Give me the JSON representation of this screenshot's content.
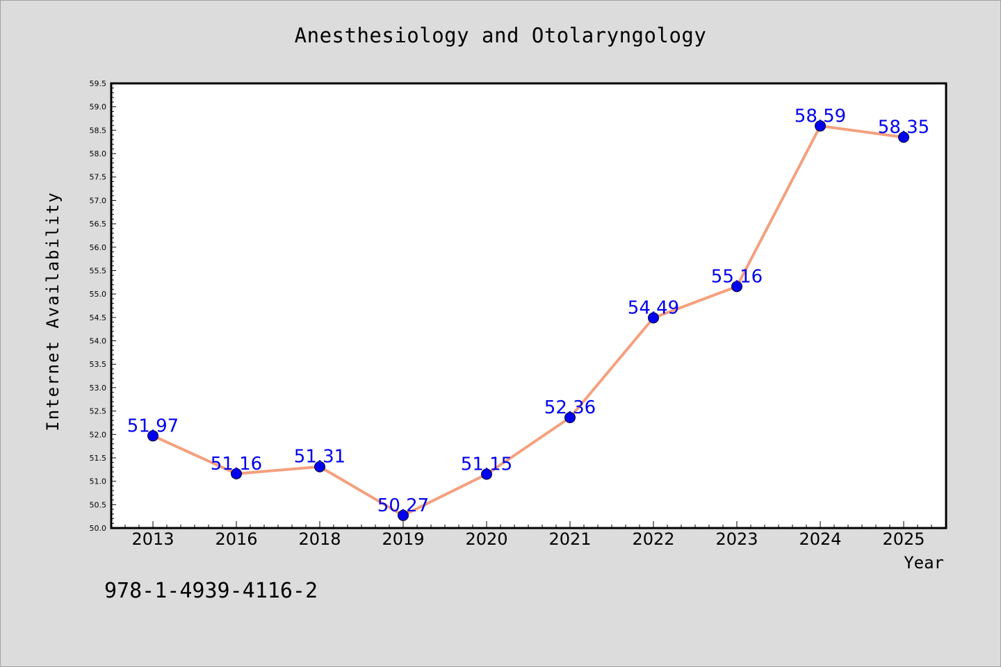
{
  "chart_data": {
    "type": "line",
    "title": "Anesthesiology and Otolaryngology",
    "xlabel": "Year",
    "ylabel": "Internet Availability",
    "categories": [
      "2013",
      "2016",
      "2018",
      "2019",
      "2020",
      "2021",
      "2022",
      "2023",
      "2024",
      "2025"
    ],
    "values": [
      51.97,
      51.16,
      51.31,
      50.27,
      51.15,
      52.36,
      54.49,
      55.16,
      58.59,
      58.35
    ],
    "data_labels": [
      "51.97",
      "51.16",
      "51.31",
      "50.27",
      "51.15",
      "52.36",
      "54.49",
      "55.16",
      "58.59",
      "58.35"
    ],
    "ylim": [
      50.0,
      59.5
    ],
    "yticks": [
      "50.0",
      "50.5",
      "51.0",
      "51.5",
      "52.0",
      "52.5",
      "53.0",
      "53.5",
      "54.0",
      "54.5",
      "55.0",
      "55.5",
      "56.0",
      "56.5",
      "57.0",
      "57.5",
      "58.0",
      "58.5",
      "59.0",
      "59.5"
    ],
    "grid": false,
    "line_color": "#f4a07e",
    "marker_color": "#0000ee",
    "label_color": "#0000ee"
  },
  "footnote": "978-1-4939-4116-2"
}
